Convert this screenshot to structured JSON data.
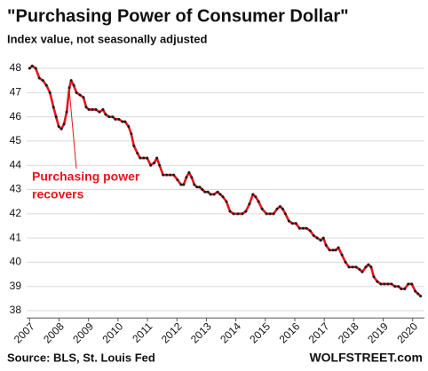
{
  "chart_data": {
    "type": "line",
    "title": "\"Purchasing Power of Consumer Dollar\"",
    "subtitle": "Index value, not seasonally adjusted",
    "annotation": [
      "Purchasing power",
      "recovers"
    ],
    "source": "Source: BLS, St. Louis Fed",
    "credit": "WOLFSTREET.com",
    "x": [
      2007.0,
      2007.09,
      2007.21,
      2007.33,
      2007.45,
      2007.57,
      2007.69,
      2007.81,
      2007.9,
      2007.99,
      2008.08,
      2008.17,
      2008.26,
      2008.35,
      2008.41,
      2008.5,
      2008.59,
      2008.71,
      2008.83,
      2008.92,
      2009.01,
      2009.13,
      2009.25,
      2009.37,
      2009.49,
      2009.58,
      2009.7,
      2009.82,
      2009.91,
      2010.03,
      2010.15,
      2010.24,
      2010.36,
      2010.45,
      2010.54,
      2010.66,
      2010.75,
      2010.87,
      2010.99,
      2011.11,
      2011.23,
      2011.32,
      2011.41,
      2011.53,
      2011.65,
      2011.77,
      2011.89,
      2012.02,
      2012.14,
      2012.23,
      2012.32,
      2012.41,
      2012.5,
      2012.59,
      2012.68,
      2012.77,
      2012.86,
      2012.95,
      2013.05,
      2013.14,
      2013.26,
      2013.38,
      2013.47,
      2013.56,
      2013.68,
      2013.8,
      2013.92,
      2014.07,
      2014.22,
      2014.34,
      2014.46,
      2014.58,
      2014.67,
      2014.77,
      2014.89,
      2015.04,
      2015.16,
      2015.28,
      2015.4,
      2015.5,
      2015.59,
      2015.68,
      2015.8,
      2015.92,
      2016.04,
      2016.16,
      2016.28,
      2016.4,
      2016.52,
      2016.64,
      2016.76,
      2016.88,
      2016.97,
      2017.06,
      2017.18,
      2017.3,
      2017.39,
      2017.48,
      2017.6,
      2017.72,
      2017.84,
      2017.96,
      2018.08,
      2018.2,
      2018.29,
      2018.41,
      2018.5,
      2018.59,
      2018.68,
      2018.8,
      2018.92,
      2019.04,
      2019.16,
      2019.28,
      2019.4,
      2019.52,
      2019.61,
      2019.73,
      2019.85,
      2019.97,
      2020.09,
      2020.18,
      2020.27
    ],
    "series": [
      {
        "color": "#e8141c",
        "marker_color": "#1a1a1a",
        "values": [
          48.0,
          48.1,
          48.0,
          47.6,
          47.5,
          47.3,
          47.0,
          46.4,
          46.0,
          45.6,
          45.5,
          45.7,
          46.2,
          47.2,
          47.5,
          47.3,
          47.0,
          46.9,
          46.8,
          46.4,
          46.3,
          46.3,
          46.3,
          46.2,
          46.3,
          46.1,
          46.0,
          46.0,
          45.9,
          45.9,
          45.8,
          45.8,
          45.6,
          45.3,
          44.8,
          44.5,
          44.3,
          44.3,
          44.3,
          44.0,
          44.1,
          44.3,
          44.0,
          43.6,
          43.6,
          43.6,
          43.6,
          43.4,
          43.2,
          43.2,
          43.5,
          43.7,
          43.5,
          43.2,
          43.1,
          43.1,
          43.0,
          42.9,
          42.9,
          42.8,
          42.8,
          42.9,
          42.8,
          42.7,
          42.5,
          42.1,
          42.0,
          42.0,
          42.0,
          42.1,
          42.4,
          42.8,
          42.7,
          42.5,
          42.2,
          42.0,
          42.0,
          42.0,
          42.2,
          42.3,
          42.2,
          42.0,
          41.7,
          41.6,
          41.6,
          41.4,
          41.4,
          41.4,
          41.3,
          41.1,
          41.0,
          40.9,
          41.0,
          40.7,
          40.5,
          40.5,
          40.5,
          40.6,
          40.3,
          40.0,
          39.8,
          39.8,
          39.8,
          39.7,
          39.6,
          39.8,
          39.9,
          39.8,
          39.4,
          39.2,
          39.1,
          39.1,
          39.1,
          39.1,
          39.0,
          39.0,
          38.9,
          38.9,
          39.1,
          39.1,
          38.8,
          38.7,
          38.6
        ]
      }
    ],
    "xlim": [
      2006.9,
      2020.4
    ],
    "xticks": [
      2007,
      2008,
      2009,
      2010,
      2011,
      2012,
      2013,
      2014,
      2015,
      2016,
      2017,
      2018,
      2019,
      2020
    ],
    "ylim": [
      37.7,
      48.4
    ],
    "yticks": [
      38,
      39,
      40,
      41,
      42,
      43,
      44,
      45,
      46,
      47,
      48
    ],
    "grid": true
  }
}
